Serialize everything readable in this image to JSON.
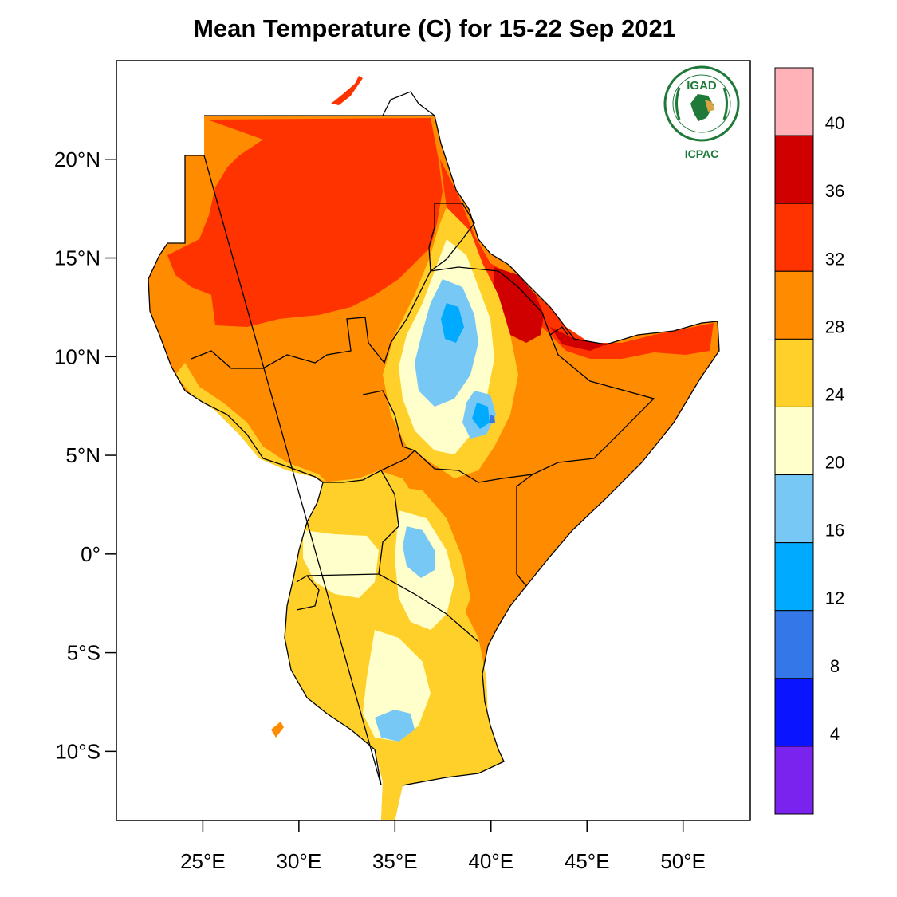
{
  "title": "Mean Temperature (C) for 15-22 Sep 2021",
  "logo": {
    "top_text": "IGAD",
    "bottom_text": "ICPAC"
  },
  "axes": {
    "y_ticks": [
      {
        "value": 20,
        "label": "20°N"
      },
      {
        "value": 15,
        "label": "15°N"
      },
      {
        "value": 10,
        "label": "10°N"
      },
      {
        "value": 5,
        "label": "5°N"
      },
      {
        "value": 0,
        "label": "0°"
      },
      {
        "value": -5,
        "label": "5°S"
      },
      {
        "value": -10,
        "label": "10°S"
      }
    ],
    "x_ticks": [
      {
        "value": 25,
        "label": "25°E"
      },
      {
        "value": 30,
        "label": "30°E"
      },
      {
        "value": 35,
        "label": "35°E"
      },
      {
        "value": 40,
        "label": "40°E"
      },
      {
        "value": 45,
        "label": "45°E"
      },
      {
        "value": 50,
        "label": "50°E"
      }
    ],
    "lon_range": [
      20.5,
      53.5
    ],
    "lat_range": [
      -13.5,
      25
    ]
  },
  "colorbar": {
    "labels": [
      "40",
      "36",
      "32",
      "28",
      "24",
      "20",
      "16",
      "12",
      "8",
      "4"
    ],
    "colors": [
      "#ffb3b8",
      "#d00000",
      "#ff3300",
      "#ff8c00",
      "#ffd02a",
      "#ffffcc",
      "#78c8f5",
      "#00aaff",
      "#3377e8",
      "#0a14ff",
      "#7a22ee"
    ]
  }
}
